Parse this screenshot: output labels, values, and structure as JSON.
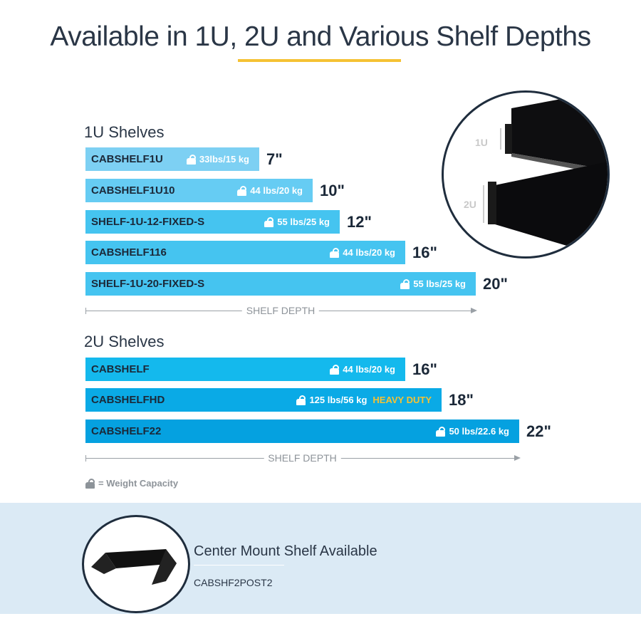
{
  "title": "Available in 1U, 2U and Various Shelf Depths",
  "colors": {
    "accent": "#f5c234",
    "band": "#dbeaf5",
    "text": "#1b2838"
  },
  "sections": [
    {
      "heading": "1U Shelves",
      "axis_label": "SHELF DEPTH",
      "bars": [
        {
          "model": "CABSHELF1U",
          "capacity": "33lbs/15 kg",
          "depth": "7\"",
          "color": "#7dd0f3"
        },
        {
          "model": "CABSHELF1U10",
          "capacity": "44 lbs/20 kg",
          "depth": "10\"",
          "color": "#66ccf3"
        },
        {
          "model": "SHELF-1U-12-FIXED-S",
          "capacity": "55 lbs/25 kg",
          "depth": "12\"",
          "color": "#45c4f0"
        },
        {
          "model": "CABSHELF116",
          "capacity": "44 lbs/20 kg",
          "depth": "16\"",
          "color": "#45c4f0"
        },
        {
          "model": "SHELF-1U-20-FIXED-S",
          "capacity": "55 lbs/25 kg",
          "depth": "20\"",
          "color": "#45c4f0"
        }
      ]
    },
    {
      "heading": "2U Shelves",
      "axis_label": "SHELF DEPTH",
      "bars": [
        {
          "model": "CABSHELF",
          "capacity": "44 lbs/20 kg",
          "depth": "16\"",
          "color": "#14b9ed"
        },
        {
          "model": "CABSHELFHD",
          "capacity": "125 lbs/56 kg",
          "badge": "HEAVY DUTY",
          "depth": "18\"",
          "color": "#0aaae6"
        },
        {
          "model": "CABSHELF22",
          "capacity": "50 lbs/22.6 kg",
          "depth": "22\"",
          "color": "#05a1e0"
        }
      ]
    }
  ],
  "legend": {
    "icon": "weight-icon",
    "label": "= Weight Capacity"
  },
  "illustration": {
    "label_1u": "1U",
    "label_2u": "2U"
  },
  "center_mount": {
    "title": "Center Mount Shelf Available",
    "model": "CABSHF2POST2"
  }
}
